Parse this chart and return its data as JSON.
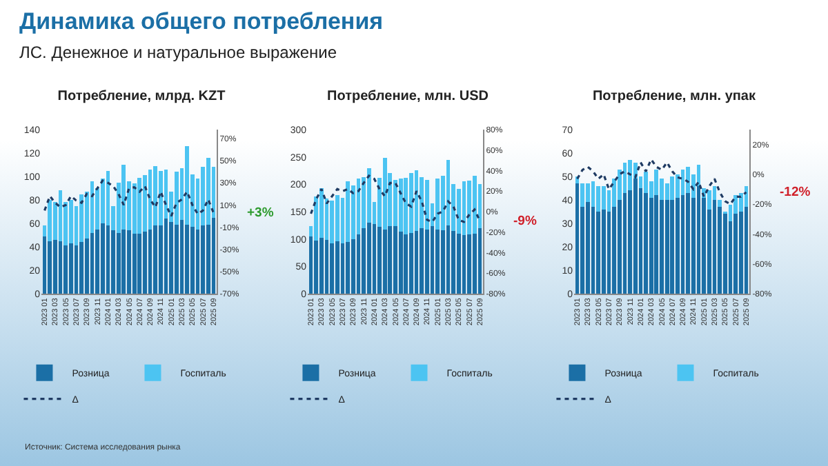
{
  "chart_data": [
    {
      "type": "bar",
      "title": "Потребление, млрд. KZT",
      "stacked": true,
      "grid": false,
      "legend": "bottom",
      "line_style": "dotted",
      "annotations": [
        "Динамика общего потребления",
        "ЛС. Денежное и натуральное выражение",
        "Источник: Система исследования рынка",
        "+3%"
      ],
      "categories": [
        "2023 01",
        null,
        "2023 03",
        null,
        "2023 05",
        null,
        "2023 07",
        null,
        "2023 09",
        null,
        "2023 11",
        null,
        "2024 01",
        null,
        "2024 03",
        null,
        "2024 05",
        null,
        "2024 07",
        null,
        "2024 09",
        null,
        "2024 11",
        null,
        "2025 01",
        null,
        "2025 03",
        null,
        "2025 05",
        null,
        "2025 07",
        null,
        "2025 09"
      ],
      "ylim": [
        0,
        140
      ],
      "yticks": [
        0,
        20,
        40,
        60,
        80,
        100,
        120,
        140
      ],
      "y2lim": [
        -70,
        78
      ],
      "y2ticks": [
        {
          "value": -70,
          "label": "-70%"
        },
        {
          "value": -50,
          "label": "-50%"
        },
        {
          "value": -30,
          "label": "-30%"
        },
        {
          "value": -10,
          "label": "-10%"
        },
        {
          "value": 10,
          "label": "10%"
        },
        {
          "value": 30,
          "label": "30%"
        },
        {
          "value": 50,
          "label": "50%"
        },
        {
          "value": 70,
          "label": "70%"
        }
      ],
      "series": [
        {
          "name": "Розница",
          "color": "#1b6fa6",
          "values": [
            49,
            45,
            46,
            45,
            41,
            43,
            41,
            44,
            47,
            52,
            55,
            60,
            58,
            54,
            52,
            55,
            54,
            51,
            51,
            53,
            55,
            58,
            58,
            64,
            61,
            59,
            63,
            59,
            57,
            55,
            58,
            59,
            65
          ]
        },
        {
          "name": "Госпиталь",
          "color": "#4cc4f2",
          "values": [
            9,
            35,
            32,
            43,
            37,
            37,
            34,
            41,
            40,
            44,
            35,
            38,
            47,
            21,
            43,
            55,
            42,
            43,
            48,
            48,
            51,
            51,
            47,
            42,
            26,
            45,
            44,
            67,
            45,
            43,
            50,
            57,
            43
          ]
        },
        {
          "name": "Δ",
          "type": "line",
          "axis": "y2",
          "color": "#1f3b63",
          "values": [
            5,
            18,
            12,
            8,
            10,
            18,
            14,
            12,
            20,
            18,
            25,
            32,
            30,
            27,
            20,
            10,
            25,
            26,
            22,
            27,
            15,
            8,
            22,
            10,
            0,
            12,
            15,
            22,
            10,
            2,
            5,
            15,
            3
          ]
        }
      ]
    },
    {
      "type": "bar",
      "title": "Потребление, млн. USD",
      "stacked": true,
      "grid": false,
      "legend": "bottom",
      "line_style": "dotted",
      "annotations": [
        "-9%"
      ],
      "categories": [
        "2023 01",
        null,
        "2023 03",
        null,
        "2023 05",
        null,
        "2023 07",
        null,
        "2023 09",
        null,
        "2023 11",
        null,
        "2024 01",
        null,
        "2024 03",
        null,
        "2024 05",
        null,
        "2024 07",
        null,
        "2024 09",
        null,
        "2024 11",
        null,
        "2025 01",
        null,
        "2025 03",
        null,
        "2025 05",
        null,
        "2025 07",
        null,
        "2025 09"
      ],
      "ylim": [
        0,
        300
      ],
      "yticks": [
        0,
        50,
        100,
        150,
        200,
        250,
        300
      ],
      "y2lim": [
        -80,
        80
      ],
      "y2ticks": [
        {
          "value": -80,
          "label": "-80%"
        },
        {
          "value": -60,
          "label": "-60%"
        },
        {
          "value": -40,
          "label": "-40%"
        },
        {
          "value": -20,
          "label": "-20%"
        },
        {
          "value": 0,
          "label": "0%"
        },
        {
          "value": 20,
          "label": "20%"
        },
        {
          "value": 40,
          "label": "40%"
        },
        {
          "value": 60,
          "label": "60%"
        },
        {
          "value": 80,
          "label": "80%"
        }
      ],
      "series": [
        {
          "name": "Розница",
          "color": "#1b6fa6",
          "values": [
            105,
            97,
            102,
            98,
            92,
            96,
            92,
            95,
            100,
            108,
            120,
            130,
            127,
            122,
            117,
            123,
            123,
            113,
            108,
            111,
            115,
            120,
            117,
            123,
            117,
            116,
            125,
            115,
            110,
            107,
            109,
            110,
            120
          ]
        },
        {
          "name": "Госпиталь",
          "color": "#4cc4f2",
          "values": [
            18,
            81,
            91,
            76,
            78,
            84,
            83,
            110,
            98,
            102,
            93,
            100,
            41,
            90,
            131,
            97,
            85,
            97,
            104,
            109,
            111,
            93,
            91,
            42,
            93,
            99,
            120,
            85,
            82,
            99,
            98,
            105,
            80
          ]
        },
        {
          "name": "Δ",
          "type": "line",
          "axis": "y2",
          "color": "#1f3b63",
          "values": [
            -2,
            12,
            22,
            8,
            15,
            22,
            20,
            22,
            18,
            20,
            28,
            35,
            32,
            22,
            15,
            28,
            28,
            18,
            8,
            5,
            20,
            10,
            -8,
            -10,
            -2,
            0,
            10,
            5,
            -8,
            -10,
            -3,
            2,
            -9
          ]
        }
      ]
    },
    {
      "type": "bar",
      "title": "Потребление, млн. упак",
      "stacked": true,
      "grid": false,
      "legend": "bottom",
      "line_style": "dotted",
      "annotations": [
        "-12%"
      ],
      "categories": [
        "2023 01",
        null,
        "2023 03",
        null,
        "2023 05",
        null,
        "2023 07",
        null,
        "2023 09",
        null,
        "2023 11",
        null,
        "2024 01",
        null,
        "2024 03",
        null,
        "2024 05",
        null,
        "2024 07",
        null,
        "2024 09",
        null,
        "2024 11",
        null,
        "2025 01",
        null,
        "2025 03",
        null,
        "2025 05",
        null,
        "2025 07",
        null,
        "2025 09"
      ],
      "ylim": [
        0,
        70
      ],
      "yticks": [
        0,
        10,
        20,
        30,
        40,
        50,
        60,
        70
      ],
      "y2lim": [
        -80,
        30
      ],
      "y2ticks": [
        {
          "value": -80,
          "label": "-80%"
        },
        {
          "value": -60,
          "label": "-60%"
        },
        {
          "value": -40,
          "label": "-40%"
        },
        {
          "value": -20,
          "label": "-20%"
        },
        {
          "value": 0,
          "label": "0%"
        },
        {
          "value": 20,
          "label": "20%"
        }
      ],
      "series": [
        {
          "name": "Розница",
          "color": "#1b6fa6",
          "values": [
            47,
            37,
            39,
            37,
            35,
            36,
            35,
            37,
            40,
            43,
            44,
            49,
            45,
            43,
            41,
            42,
            40,
            40,
            40,
            41,
            42,
            43,
            41,
            46,
            41,
            36,
            40,
            37,
            34,
            31,
            34,
            35,
            37
          ]
        },
        {
          "name": "Госпиталь",
          "color": "#4cc4f2",
          "values": [
            3,
            10,
            8,
            11,
            11,
            10,
            9,
            12,
            13,
            13,
            13,
            7,
            5,
            9,
            7,
            11,
            9,
            7,
            10,
            10,
            11,
            11,
            10,
            9,
            4,
            8,
            6,
            3,
            1,
            7,
            8,
            8,
            9
          ]
        },
        {
          "name": "Δ",
          "type": "line",
          "axis": "y2",
          "color": "#1f3b63",
          "values": [
            -3,
            3,
            5,
            2,
            -3,
            0,
            -10,
            -5,
            0,
            2,
            0,
            -2,
            8,
            2,
            10,
            5,
            3,
            8,
            2,
            -2,
            -3,
            -5,
            -10,
            -5,
            -15,
            -8,
            -3,
            -12,
            -18,
            -20,
            -15,
            -15,
            -12
          ]
        }
      ]
    }
  ]
}
